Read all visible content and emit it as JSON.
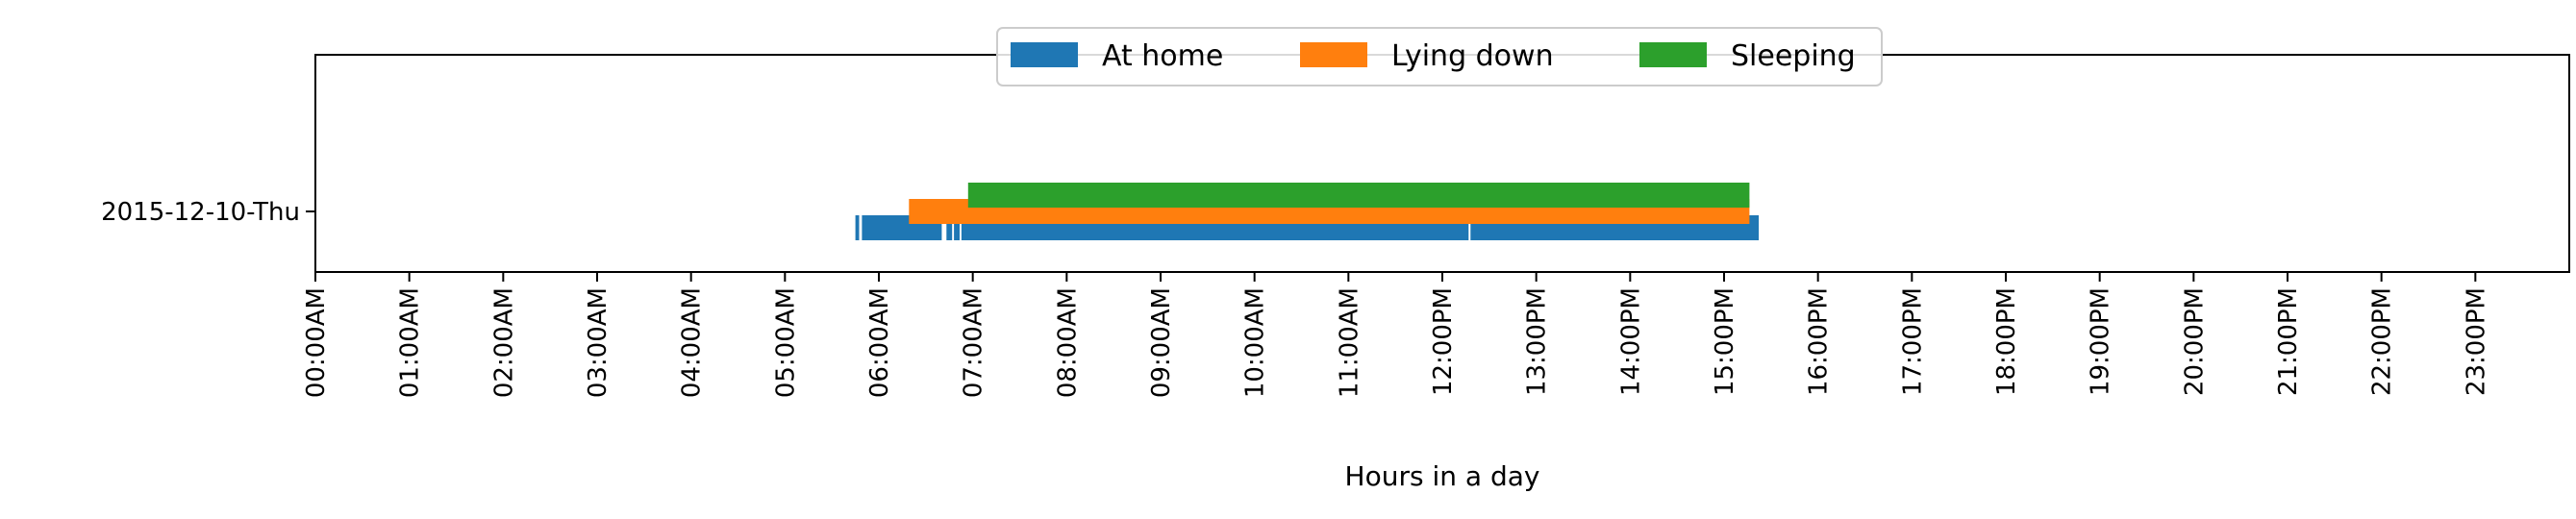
{
  "chart_data": {
    "type": "timeline",
    "title": "",
    "xlabel": "Hours in a day",
    "ylabel": "",
    "xlim": [
      0,
      24
    ],
    "x_ticks": [
      "00:00AM",
      "01:00AM",
      "02:00AM",
      "03:00AM",
      "04:00AM",
      "05:00AM",
      "06:00AM",
      "07:00AM",
      "08:00AM",
      "09:00AM",
      "10:00AM",
      "11:00AM",
      "12:00PM",
      "13:00PM",
      "14:00PM",
      "15:00PM",
      "16:00PM",
      "17:00PM",
      "18:00PM",
      "19:00PM",
      "20:00PM",
      "21:00PM",
      "22:00PM",
      "23:00PM"
    ],
    "categories": [
      "2015-12-10-Thu"
    ],
    "grid": false,
    "legend_position": "top-center",
    "series": [
      {
        "name": "At home",
        "color": "#1f77b4",
        "intervals": [
          [
            5.75,
            5.79
          ],
          [
            5.82,
            6.67
          ],
          [
            6.72,
            6.78
          ],
          [
            6.8,
            6.86
          ],
          [
            6.88,
            12.28
          ],
          [
            12.3,
            15.37
          ]
        ]
      },
      {
        "name": "Lying down",
        "color": "#ff7f0e",
        "intervals": [
          [
            6.32,
            15.27
          ]
        ]
      },
      {
        "name": "Sleeping",
        "color": "#2ca02c",
        "intervals": [
          [
            6.95,
            15.27
          ]
        ]
      }
    ]
  }
}
